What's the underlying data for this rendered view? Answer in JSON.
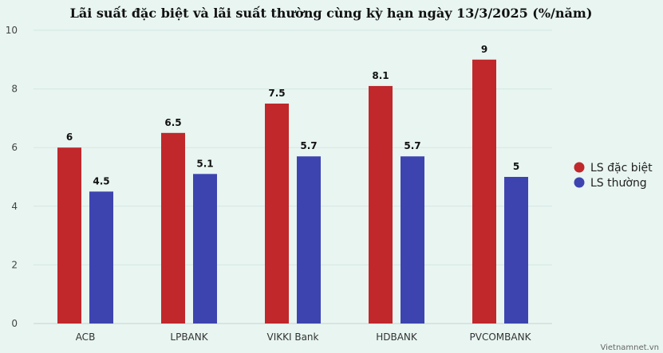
{
  "chart_data": {
    "type": "bar",
    "title": "Lãi suất đặc biệt và lãi suất thường cùng kỳ hạn ngày 13/3/2025 (%/năm)",
    "categories": [
      "ACB",
      "LPBANK",
      "VIKKI Bank",
      "HDBANK",
      "PVCOMBANK"
    ],
    "series": [
      {
        "name": "LS đặc biệt",
        "values": [
          6,
          6.5,
          7.5,
          8.1,
          9
        ],
        "labels": [
          "6",
          "6.5",
          "7.5",
          "8.1",
          "9"
        ],
        "color": "#c0282b"
      },
      {
        "name": "LS thường",
        "values": [
          4.5,
          5.1,
          5.7,
          5.7,
          5
        ],
        "labels": [
          "4.5",
          "5.1",
          "5.7",
          "5.7",
          "5"
        ],
        "color": "#3d44b0"
      }
    ],
    "ylim": [
      0,
      10
    ],
    "yticks": [
      "0",
      "2",
      "4",
      "6",
      "8",
      "10"
    ],
    "grid": true,
    "legend_position": "right",
    "xlabel": "",
    "ylabel": ""
  },
  "credit": "Vietnamnet.vn"
}
